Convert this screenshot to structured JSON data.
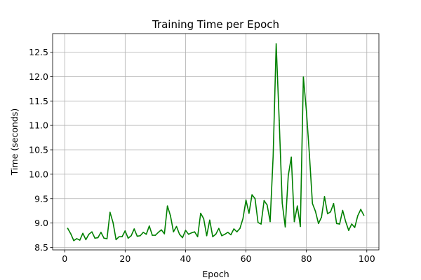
{
  "chart_data": {
    "type": "line",
    "title": "Training Time per Epoch",
    "xlabel": "Epoch",
    "ylabel": "Time (seconds)",
    "xlim": [
      -4,
      104
    ],
    "ylim": [
      8.45,
      12.88
    ],
    "xticks": [
      0,
      20,
      40,
      60,
      80,
      100
    ],
    "yticks": [
      8.5,
      9.0,
      9.5,
      10.0,
      10.5,
      11.0,
      11.5,
      12.0,
      12.5
    ],
    "ytick_labels": [
      "8.5",
      "9.0",
      "9.5",
      "10.0",
      "10.5",
      "11.0",
      "11.5",
      "12.0",
      "12.5"
    ],
    "grid": true,
    "series": [
      {
        "color": "#008000",
        "x": [
          1,
          2,
          3,
          4,
          5,
          6,
          7,
          8,
          9,
          10,
          11,
          12,
          13,
          14,
          15,
          16,
          17,
          18,
          19,
          20,
          21,
          22,
          23,
          24,
          25,
          26,
          27,
          28,
          29,
          30,
          31,
          32,
          33,
          34,
          35,
          36,
          37,
          38,
          39,
          40,
          41,
          42,
          43,
          44,
          45,
          46,
          47,
          48,
          49,
          50,
          51,
          52,
          53,
          54,
          55,
          56,
          57,
          58,
          59,
          60,
          61,
          62,
          63,
          64,
          65,
          66,
          67,
          68,
          69,
          70,
          71,
          72,
          73,
          74,
          75,
          76,
          77,
          78,
          79,
          80,
          81,
          82,
          83,
          84,
          85,
          86,
          87,
          88,
          89,
          90,
          91,
          92,
          93,
          94,
          95,
          96,
          97,
          98,
          99
        ],
        "values": [
          8.89,
          8.78,
          8.64,
          8.68,
          8.65,
          8.79,
          8.66,
          8.77,
          8.82,
          8.69,
          8.7,
          8.81,
          8.69,
          8.68,
          9.22,
          9.01,
          8.66,
          8.72,
          8.72,
          8.84,
          8.69,
          8.74,
          8.88,
          8.73,
          8.74,
          8.81,
          8.77,
          8.94,
          8.75,
          8.75,
          8.81,
          8.86,
          8.78,
          9.35,
          9.15,
          8.82,
          8.93,
          8.77,
          8.7,
          8.85,
          8.77,
          8.8,
          8.82,
          8.72,
          9.2,
          9.09,
          8.74,
          9.06,
          8.72,
          8.77,
          8.89,
          8.74,
          8.77,
          8.81,
          8.76,
          8.88,
          8.82,
          8.89,
          9.09,
          9.47,
          9.2,
          9.58,
          9.5,
          9.01,
          8.98,
          9.46,
          9.37,
          9.03,
          10.38,
          12.67,
          11.1,
          9.41,
          8.92,
          9.97,
          10.35,
          9.03,
          9.35,
          8.93,
          11.99,
          11.3,
          10.4,
          9.4,
          9.24,
          8.99,
          9.12,
          9.54,
          9.19,
          9.23,
          9.4,
          8.99,
          8.98,
          9.26,
          9.03,
          8.85,
          8.98,
          8.91,
          9.15,
          9.28,
          9.16
        ]
      }
    ]
  }
}
